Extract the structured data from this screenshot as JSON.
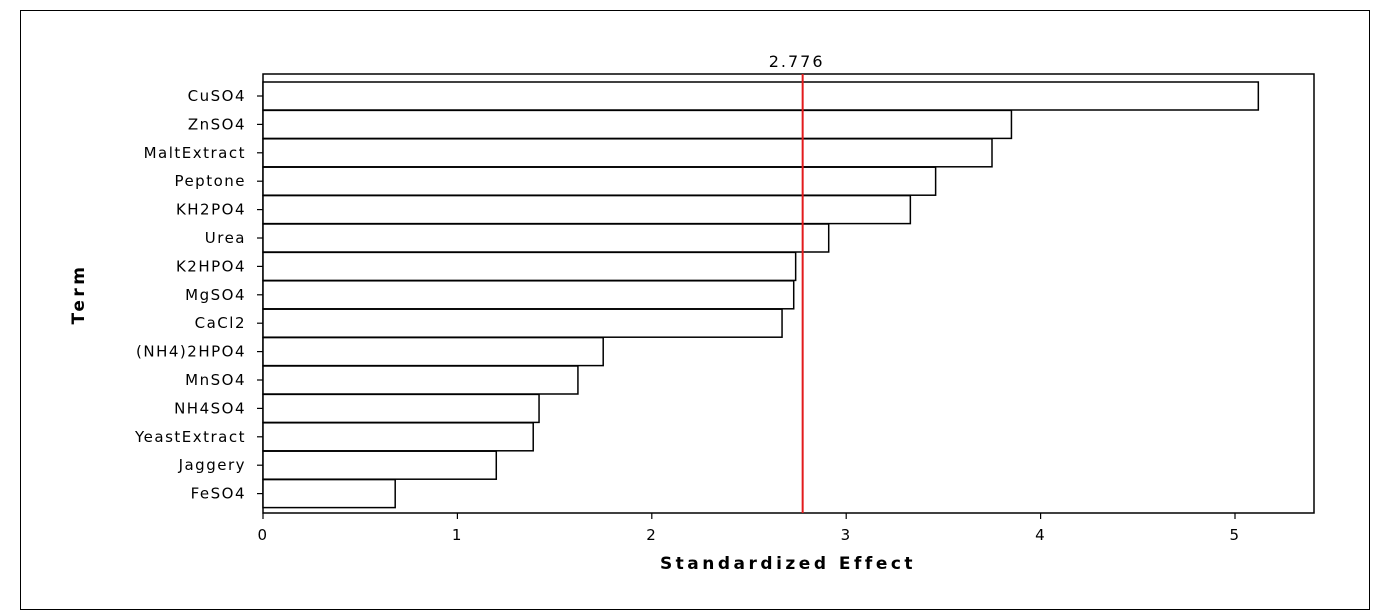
{
  "chart_data": {
    "type": "bar",
    "orientation": "horizontal",
    "xlabel": "Standardized Effect",
    "ylabel": "Term",
    "xlim": [
      0,
      5.4
    ],
    "xticks": [
      0,
      1,
      2,
      3,
      4,
      5
    ],
    "reference_line": {
      "value": 2.776,
      "label": "2.776",
      "color": "#e31a1c"
    },
    "bar_fill": "#ffffff",
    "bar_stroke": "#000000",
    "categories": [
      "CuSO4",
      "ZnSO4",
      "MaltExtract",
      "Peptone",
      "KH2PO4",
      "Urea",
      "K2HPO4",
      "MgSO4",
      "CaCl2",
      "(NH4)2HPO4",
      "MnSO4",
      "NH4SO4",
      "YeastExtract",
      "Jaggery",
      "FeSO4"
    ],
    "values": [
      5.12,
      3.85,
      3.75,
      3.46,
      3.33,
      2.91,
      2.74,
      2.73,
      2.67,
      1.75,
      1.62,
      1.42,
      1.39,
      1.2,
      0.68
    ],
    "grid": false,
    "legend": "none"
  }
}
